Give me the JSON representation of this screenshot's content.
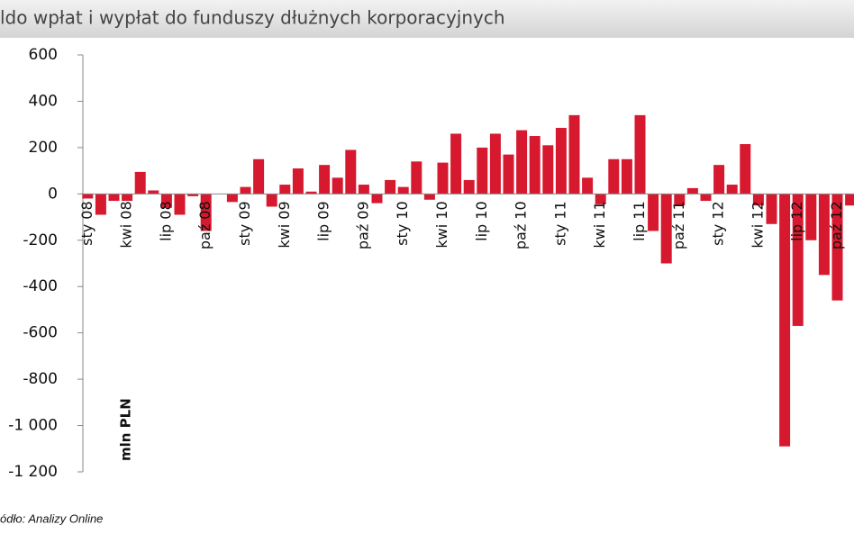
{
  "chart_data": {
    "type": "bar",
    "title": "ldo wpłat i wypłat do funduszy dłużnych korporacyjnych",
    "y_label": "mln PLN",
    "source": "ódło: Analizy Online",
    "categories": [
      "sty 08",
      null,
      null,
      "kwi 08",
      null,
      null,
      "lip 08",
      null,
      null,
      "paź 08",
      null,
      null,
      "sty 09",
      null,
      null,
      "kwi 09",
      null,
      null,
      "lip 09",
      null,
      null,
      "paź 09",
      null,
      null,
      "sty 10",
      null,
      null,
      "kwi 10",
      null,
      null,
      "lip 10",
      null,
      null,
      "paź 10",
      null,
      null,
      "sty 11",
      null,
      null,
      "kwi 11",
      null,
      null,
      "lip 11",
      null,
      null,
      "paź 11",
      null,
      null,
      "sty 12",
      null,
      null,
      "kwi 12",
      null,
      null,
      "lip 12",
      null,
      null,
      "paź 12",
      null
    ],
    "values": [
      -20,
      -90,
      -30,
      -30,
      95,
      15,
      -60,
      -90,
      -10,
      -160,
      0,
      -35,
      30,
      150,
      -55,
      40,
      110,
      10,
      125,
      70,
      190,
      40,
      -40,
      60,
      30,
      140,
      -25,
      135,
      260,
      60,
      200,
      260,
      170,
      275,
      250,
      210,
      285,
      340,
      70,
      -45,
      150,
      150,
      340,
      -160,
      -300,
      -50,
      25,
      -30,
      125,
      40,
      215,
      -50,
      -130,
      -1090,
      -570,
      -200,
      -350,
      -460,
      -50
    ],
    "color": "#d7192f",
    "ylim": [
      -1200,
      600
    ],
    "yticks": [
      {
        "value": -1200,
        "label": "-1 200"
      },
      {
        "value": -1000,
        "label": "-1 000"
      },
      -800,
      -600,
      -400,
      -200,
      0,
      200,
      400,
      600
    ],
    "grid": false
  }
}
